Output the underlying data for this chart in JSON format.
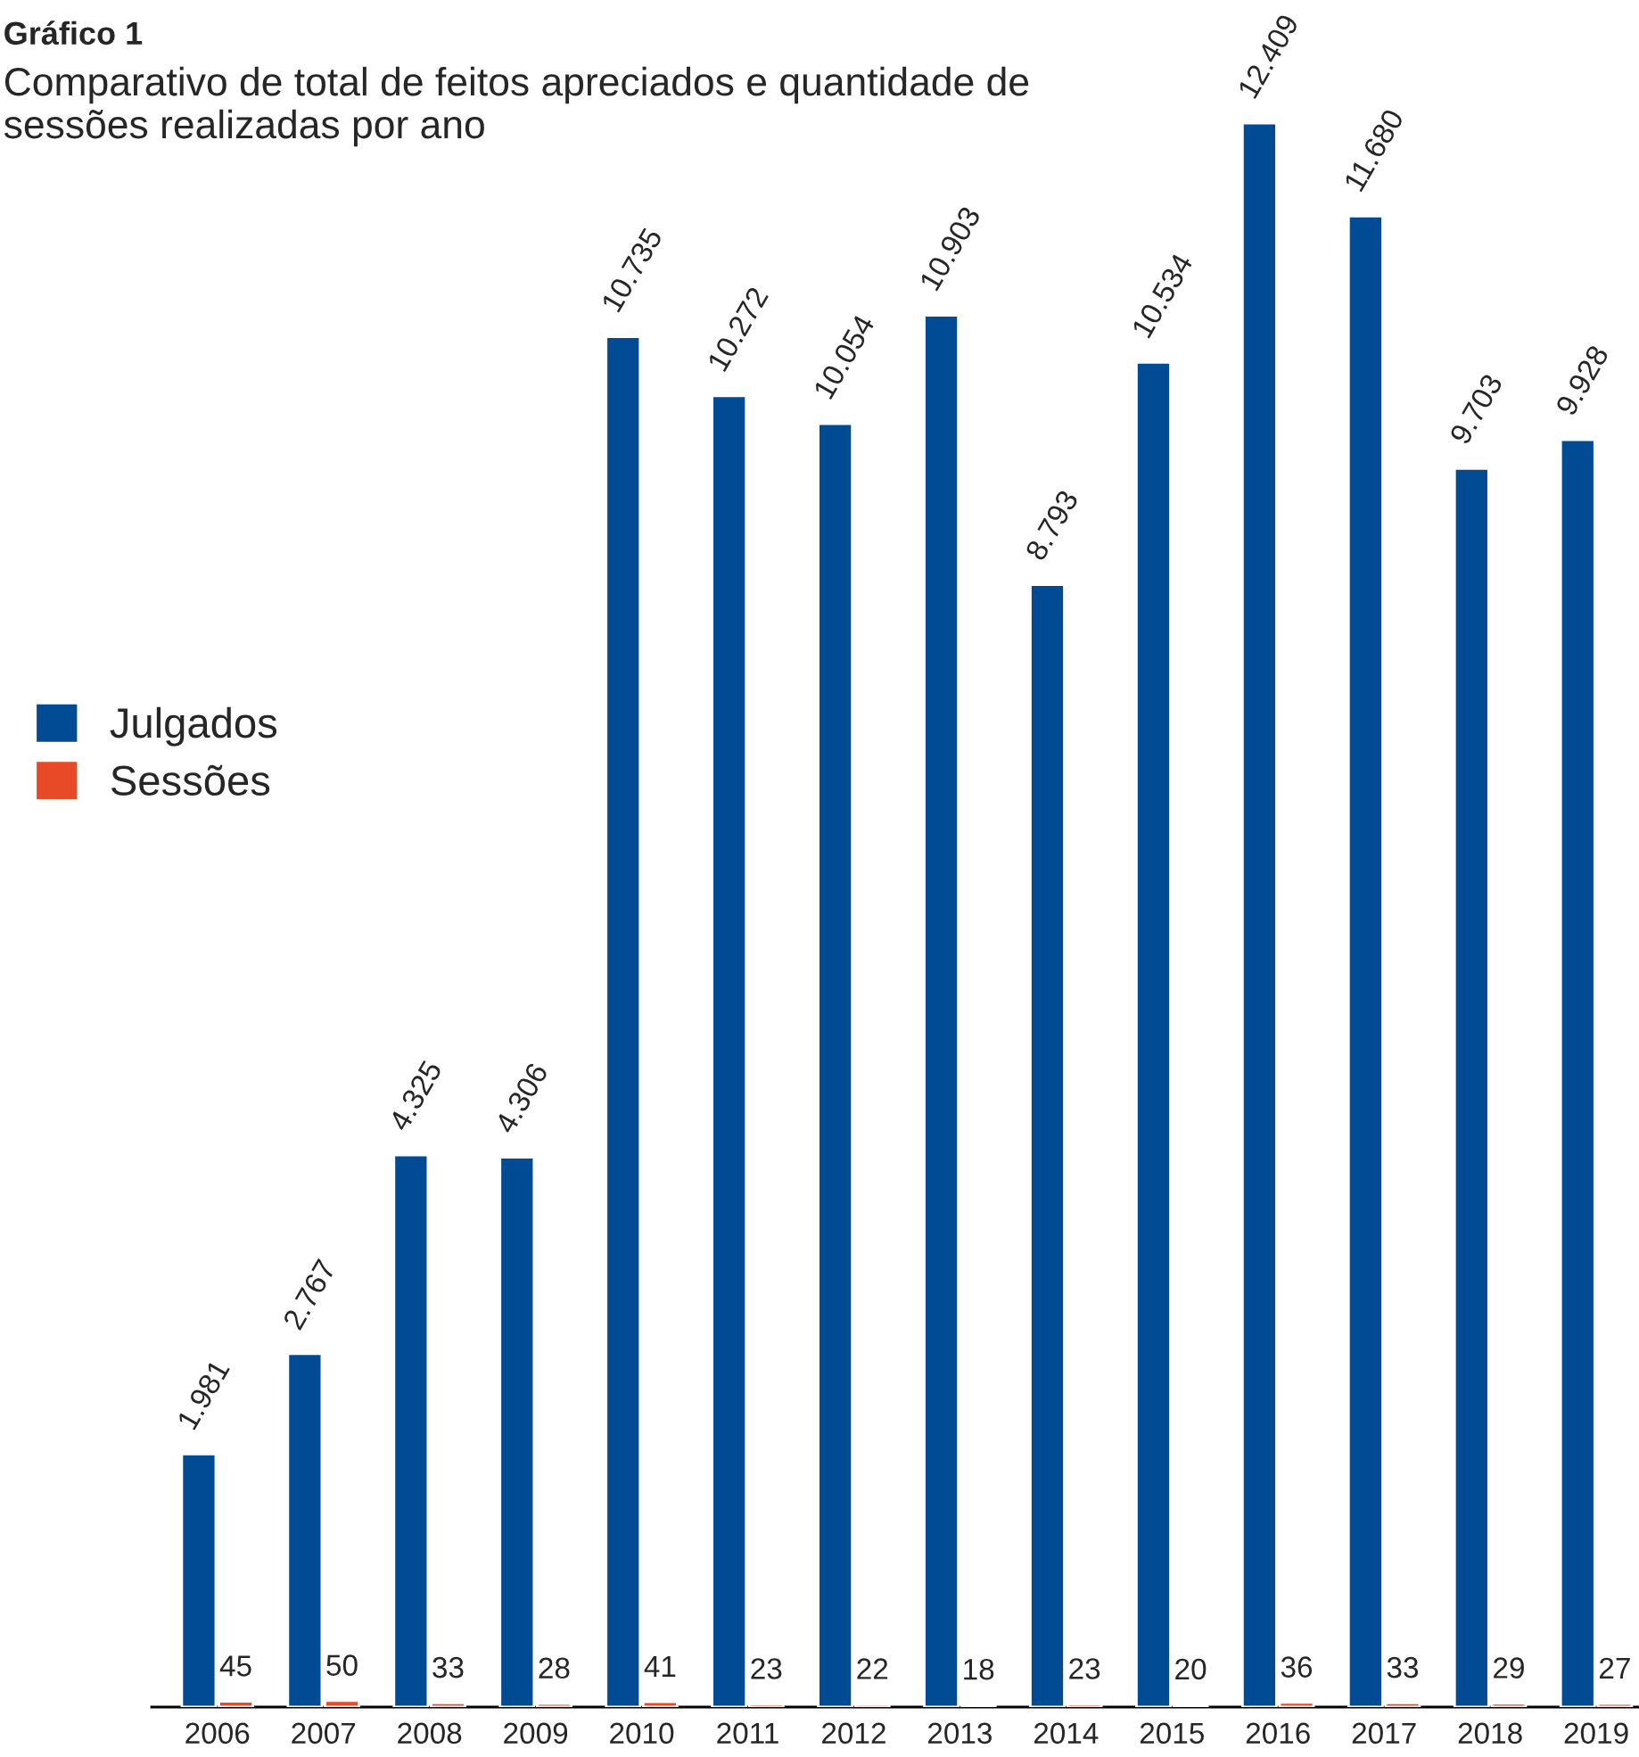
{
  "chart_data": {
    "type": "bar",
    "title": "Gráfico 1",
    "subtitle": "Comparativo de total de feitos apreciados e quantidade de sessões realizadas por ano",
    "categories": [
      "2006",
      "2007",
      "2008",
      "2009",
      "2010",
      "2011",
      "2012",
      "2013",
      "2014",
      "2015",
      "2016",
      "2017",
      "2018",
      "2019"
    ],
    "series": [
      {
        "name": "Julgados",
        "color": "#004b93",
        "values": [
          1981,
          2767,
          4325,
          4306,
          10735,
          10272,
          10054,
          10903,
          8793,
          10534,
          12409,
          11680,
          9703,
          9928
        ],
        "value_labels": [
          "1.981",
          "2.767",
          "4.325",
          "4.306",
          "10.735",
          "10.272",
          "10.054",
          "10.903",
          "8.793",
          "10.534",
          "12.409",
          "11.680",
          "9.703",
          "9.928"
        ]
      },
      {
        "name": "Sessões",
        "color": "#e84a27",
        "values": [
          45,
          50,
          33,
          28,
          41,
          23,
          22,
          18,
          23,
          20,
          36,
          33,
          29,
          27
        ],
        "value_labels": [
          "45",
          "50",
          "33",
          "28",
          "41",
          "23",
          "22",
          "18",
          "23",
          "20",
          "36",
          "33",
          "29",
          "27"
        ]
      }
    ],
    "legend": "left",
    "grid": false,
    "tick_labels": "x"
  }
}
